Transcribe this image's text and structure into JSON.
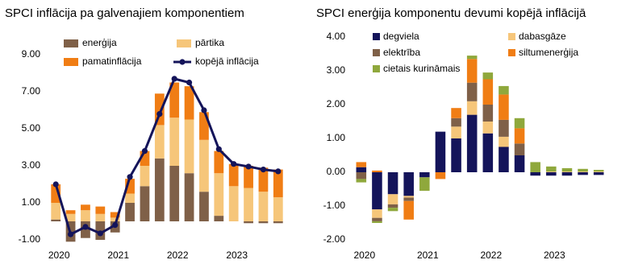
{
  "chart_data": [
    {
      "type": "bar",
      "stacked": true,
      "title": "SPCI inflācija pa galvenajiem komponentiem",
      "categories": [
        "2020",
        null,
        null,
        null,
        "2021",
        null,
        null,
        null,
        "2022",
        null,
        null,
        null,
        "2023",
        null,
        null,
        null
      ],
      "series": [
        {
          "name": "enerģija",
          "color": "#7f6048",
          "values": [
            0.1,
            -1.1,
            -0.9,
            -1.0,
            -0.6,
            1.0,
            1.9,
            3.4,
            3.0,
            2.6,
            1.6,
            0.3,
            0.0,
            -0.1,
            -0.1,
            -0.1
          ]
        },
        {
          "name": "pārtika",
          "color": "#f6c67a",
          "values": [
            0.9,
            0.4,
            0.6,
            0.4,
            0.2,
            0.5,
            1.1,
            1.8,
            2.6,
            2.9,
            2.8,
            2.3,
            1.9,
            1.8,
            1.6,
            1.3
          ]
        },
        {
          "name": "pamatinflācija",
          "color": "#f07d14",
          "values": [
            1.0,
            0.2,
            0.3,
            0.4,
            0.3,
            0.8,
            0.8,
            1.7,
            1.9,
            1.8,
            1.5,
            1.2,
            1.2,
            1.2,
            1.3,
            1.5
          ]
        },
        {
          "name": "kopējā inflācija",
          "type": "line",
          "color": "#14145a",
          "values": [
            2.0,
            -0.7,
            -0.3,
            -0.65,
            -0.2,
            2.4,
            3.8,
            5.8,
            7.7,
            7.5,
            6.0,
            3.9,
            3.1,
            2.96,
            2.8,
            2.7
          ]
        }
      ],
      "ylim": [
        -1,
        10
      ],
      "yticks": [
        {
          "value": -1,
          "label": "-1.00"
        },
        {
          "value": 1,
          "label": "1.00"
        },
        {
          "value": 3,
          "label": "3.00"
        },
        {
          "value": 5,
          "label": "5.00"
        },
        {
          "value": 7,
          "label": "7.00"
        },
        {
          "value": 9,
          "label": "9.00"
        }
      ],
      "grid": false,
      "legend": "top-left"
    },
    {
      "type": "bar",
      "stacked": true,
      "title": "SPCI enerģija komponentu devumi kopējā inflācijā",
      "categories": [
        "2020",
        null,
        null,
        null,
        "2021",
        null,
        null,
        null,
        "2022",
        null,
        null,
        null,
        "2023",
        null,
        null,
        null
      ],
      "series": [
        {
          "name": "degviela",
          "color": "#14145a",
          "values": [
            0.15,
            -1.1,
            -0.65,
            -0.7,
            -0.15,
            1.2,
            1.0,
            1.7,
            1.15,
            0.75,
            0.5,
            -0.1,
            -0.1,
            -0.1,
            -0.08,
            -0.08
          ]
        },
        {
          "name": "dabasgāze",
          "color": "#f6c67a",
          "values": [
            0,
            -0.25,
            -0.3,
            -0.05,
            0,
            0,
            0.35,
            0.4,
            0.35,
            0.3,
            0,
            0,
            0.02,
            0.02,
            0.02,
            0.02
          ]
        },
        {
          "name": "elektrība",
          "color": "#7f6048",
          "values": [
            -0.2,
            -0.1,
            -0.1,
            -0.1,
            0,
            0,
            0.25,
            0.55,
            0.5,
            0.5,
            0.35,
            0,
            0,
            0,
            0,
            0
          ]
        },
        {
          "name": "siltumenerģija",
          "color": "#f07d14",
          "values": [
            0.15,
            0.05,
            0,
            -0.55,
            0,
            -0.2,
            0.3,
            0.7,
            0.75,
            0.75,
            0.45,
            0,
            0,
            0,
            0,
            0
          ]
        },
        {
          "name": "cietais kurināmais",
          "color": "#8fa83c",
          "values": [
            -0.1,
            -0.05,
            -0.1,
            0,
            -0.4,
            0,
            0,
            0.1,
            0.2,
            0.25,
            0.3,
            0.3,
            0.15,
            0.1,
            0.08,
            0.05
          ]
        }
      ],
      "ylim": [
        -2,
        4
      ],
      "yticks": [
        {
          "value": -2,
          "label": "-2.00"
        },
        {
          "value": -1,
          "label": "-1.00"
        },
        {
          "value": 0,
          "label": "0.00"
        },
        {
          "value": 1,
          "label": "1.00"
        },
        {
          "value": 2,
          "label": "2.00"
        },
        {
          "value": 3,
          "label": "3.00"
        },
        {
          "value": 4,
          "label": "4.00"
        }
      ],
      "grid": false,
      "legend": "top-left"
    }
  ]
}
